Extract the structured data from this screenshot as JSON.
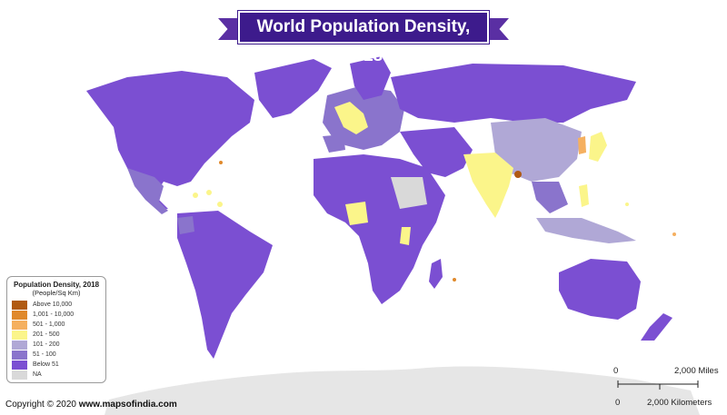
{
  "title": "World Population Density, 2018",
  "legend": {
    "title": "Population Density, 2018",
    "subtitle": "(People/Sq Km)",
    "items": [
      {
        "label": "Above 10,000",
        "color": "#b05a12"
      },
      {
        "label": "1,001 - 10,000",
        "color": "#e0892c"
      },
      {
        "label": "501 - 1,000",
        "color": "#f5b060"
      },
      {
        "label": "201 - 500",
        "color": "#fbf58a"
      },
      {
        "label": "101 - 200",
        "color": "#b0a8d6"
      },
      {
        "label": "51 - 100",
        "color": "#8a74cc"
      },
      {
        "label": "Below 51",
        "color": "#7b4fd2"
      },
      {
        "label": "NA",
        "color": "#d9d9d9"
      }
    ]
  },
  "scale_bar": {
    "miles_start": "0",
    "miles_end": "2,000 Miles",
    "km_start": "0",
    "km_end": "2,000 Kilometers"
  },
  "copyright": {
    "prefix": "Copyright © 2020",
    "site": "www.mapsofindia.com"
  },
  "colors": {
    "land_default": "#7b4fd2",
    "antarctica": "#e2e2e2",
    "title_bg": "#3d1b8c"
  }
}
